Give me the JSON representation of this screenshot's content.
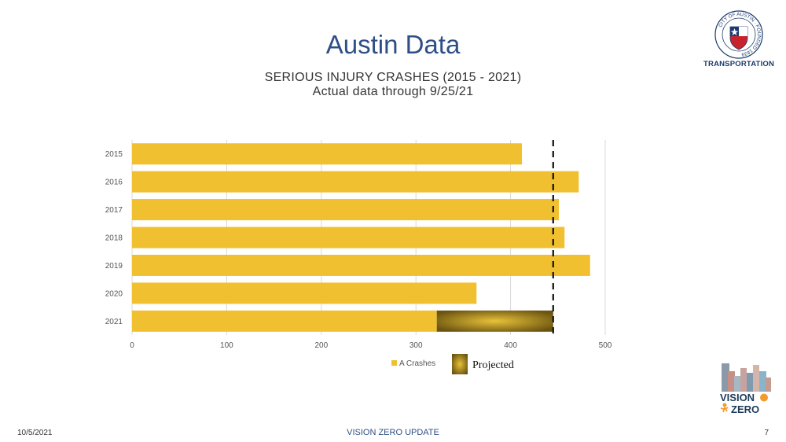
{
  "slide": {
    "title": "Austin Data",
    "subtitle_line1": "SERIOUS INJURY CRASHES (2015 - 2021)",
    "subtitle_line2": "Actual data through 9/25/21",
    "logo_label": "TRANSPORTATION",
    "logo_ring_text": "CITY OF AUSTIN · FOUNDED 1839",
    "vz_logo": {
      "line1": "VISION",
      "line2": "ZERO"
    },
    "footer_date": "10/5/2021",
    "footer_title": "VISION ZERO UPDATE",
    "page_number": "7"
  },
  "colors": {
    "bar": "#f0c030",
    "projected_dark": "#6b5410",
    "projected_light": "#e2bd35",
    "title": "#2e4f86",
    "reference_line": "#111111"
  },
  "chart_data": {
    "type": "bar",
    "orientation": "horizontal",
    "categories": [
      "2015",
      "2016",
      "2017",
      "2018",
      "2019",
      "2020",
      "2021"
    ],
    "series": [
      {
        "name": "A Crashes",
        "values": [
          412,
          472,
          451,
          457,
          484,
          364,
          322
        ]
      },
      {
        "name": "Projected",
        "values": [
          0,
          0,
          0,
          0,
          0,
          0,
          123
        ]
      }
    ],
    "reference_line_x": 445,
    "xlim": [
      0,
      500
    ],
    "xticks": [
      0,
      100,
      200,
      300,
      400,
      500
    ],
    "grid": true,
    "legend": "bottom"
  }
}
